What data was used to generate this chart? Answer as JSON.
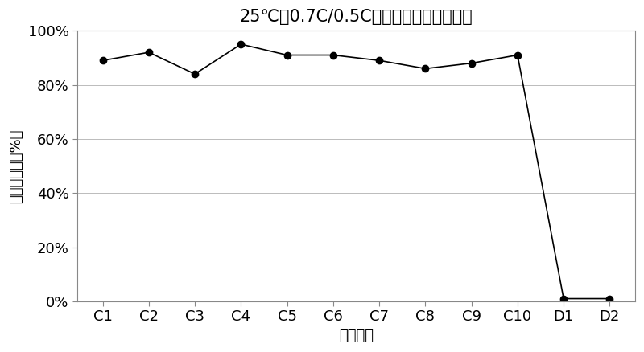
{
  "categories": [
    "C1",
    "C2",
    "C3",
    "C4",
    "C5",
    "C6",
    "C7",
    "C8",
    "C9",
    "C10",
    "D1",
    "D2"
  ],
  "values": [
    0.89,
    0.92,
    0.84,
    0.95,
    0.91,
    0.91,
    0.89,
    0.86,
    0.88,
    0.91,
    0.01,
    0.01
  ],
  "title": "25℃（0.7C/0.5C）循环容量保持率比较",
  "ylabel": "容量保持率（%）",
  "xlabel": "电芯组别",
  "line_color": "#000000",
  "marker": "o",
  "marker_facecolor": "#000000",
  "marker_size": 6,
  "ylim": [
    0,
    1.0
  ],
  "yticks": [
    0,
    0.2,
    0.4,
    0.6,
    0.8,
    1.0
  ],
  "grid_color": "#bbbbbb",
  "background_color": "#ffffff",
  "title_fontsize": 15,
  "label_fontsize": 13,
  "tick_fontsize": 13
}
